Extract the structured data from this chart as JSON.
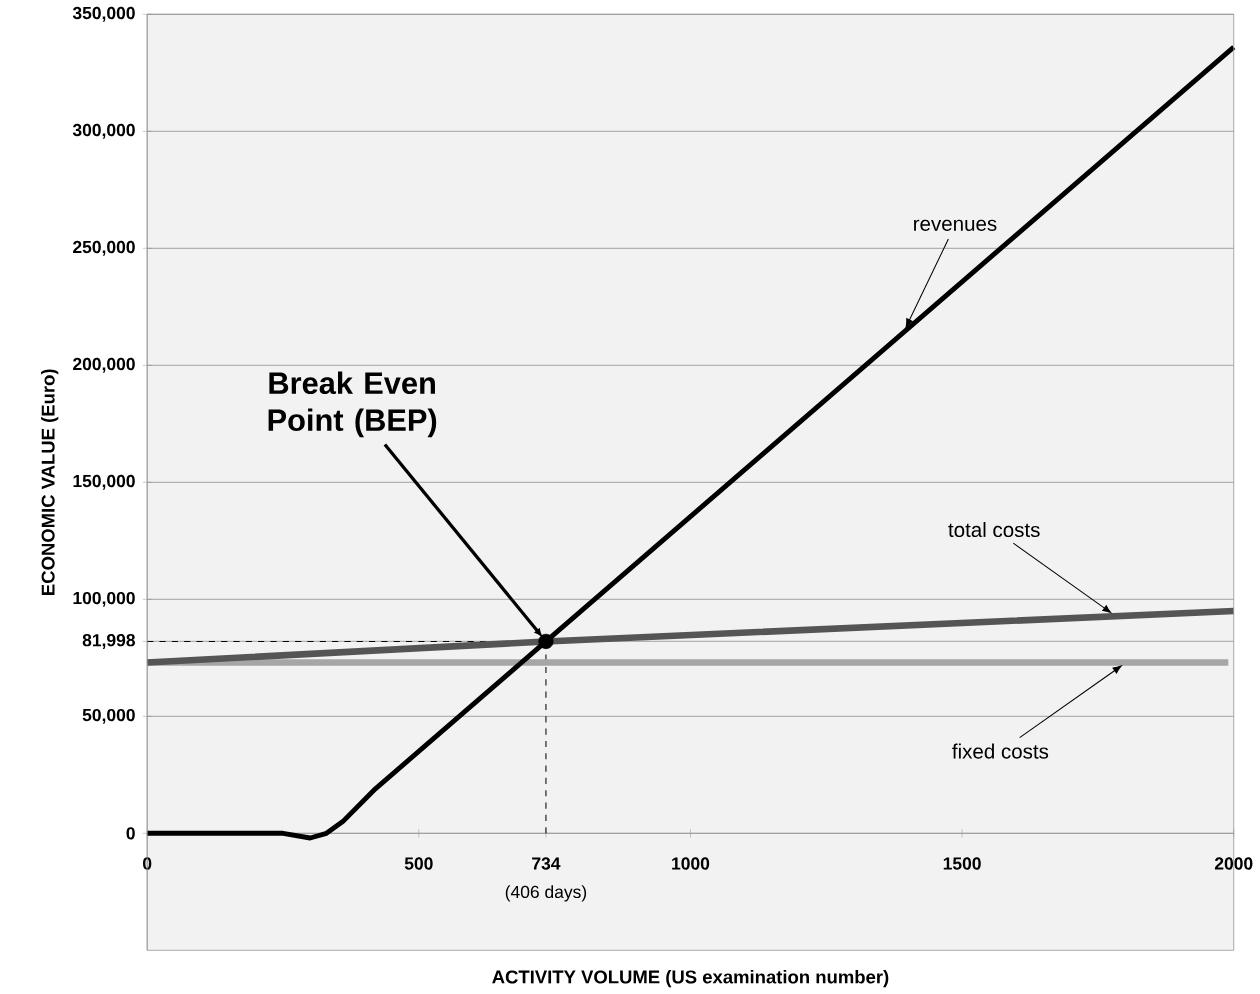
{
  "chart_data": {
    "type": "line",
    "xlabel": "ACTIVITY VOLUME (US examination number)",
    "ylabel": "ECONOMIC VALUE (Euro)",
    "xlim": [
      0,
      2000
    ],
    "ylim": [
      -50000,
      350000
    ],
    "xticks": [
      0,
      500,
      734,
      1000,
      1500,
      2000
    ],
    "yticks": [
      {
        "value": 0,
        "label": "0"
      },
      {
        "value": 50000,
        "label": "50,000"
      },
      {
        "value": 81998,
        "label": "81,998"
      },
      {
        "value": 100000,
        "label": "100,000"
      },
      {
        "value": 150000,
        "label": "150,000"
      },
      {
        "value": 200000,
        "label": "200,000"
      },
      {
        "value": 250000,
        "label": "250,000"
      },
      {
        "value": 300000,
        "label": "300,000"
      },
      {
        "value": 350000,
        "label": "350,000"
      }
    ],
    "grid": "y",
    "marker": "none",
    "series": [
      {
        "color": "#a6a6a6",
        "x": [
          0,
          1990
        ],
        "values": [
          73000,
          73000
        ]
      },
      {
        "color": "#555555",
        "x": [
          0,
          734,
          2000
        ],
        "values": [
          73000,
          81998,
          95000
        ]
      },
      {
        "color": "#000000",
        "x": [
          0,
          250,
          300,
          330,
          360,
          420,
          734,
          2000
        ],
        "values": [
          0,
          0,
          -2000,
          0,
          5000,
          19000,
          81998,
          336000
        ]
      },
      {
        "type": "scatter",
        "color": "#000000",
        "marker": "circle",
        "x": [
          734
        ],
        "values": [
          81998
        ]
      }
    ],
    "ref_lines": [
      {
        "axis": "y",
        "value": 81998,
        "line_style": "dashed",
        "color": "#000000"
      },
      {
        "axis": "x",
        "value": 734,
        "line_style": "dashed",
        "color": "#000000"
      }
    ],
    "annotations": [
      {
        "text": "revenues",
        "x": 1392,
        "y": 214000
      },
      {
        "text": "Break Even Point (BEP)",
        "x": 734,
        "y": 81998
      },
      {
        "text": "total costs",
        "x": 1783,
        "y": 92800
      },
      {
        "text": "fixed costs",
        "x": 1802,
        "y": 73000
      },
      "(406 days)"
    ]
  }
}
